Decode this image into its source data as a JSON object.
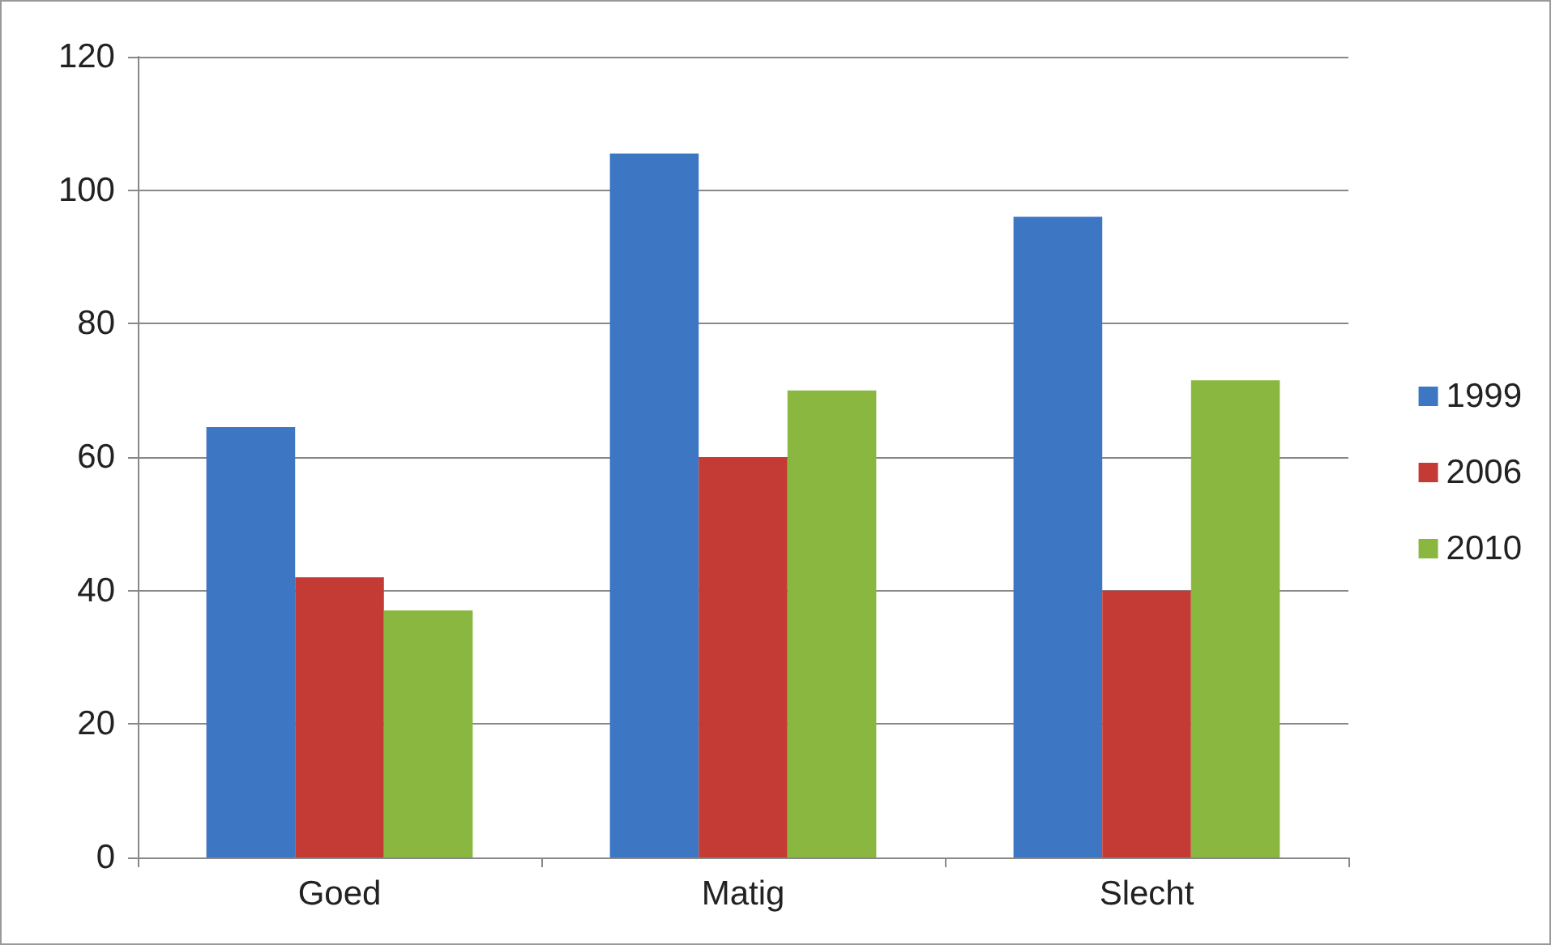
{
  "chart_data": {
    "type": "bar",
    "categories": [
      "Goed",
      "Matig",
      "Slecht"
    ],
    "series": [
      {
        "name": "1999",
        "color": "#3d77c4",
        "values": [
          64.5,
          105.5,
          96
        ]
      },
      {
        "name": "2006",
        "color": "#c43b35",
        "values": [
          42,
          60,
          40
        ]
      },
      {
        "name": "2010",
        "color": "#8ab73f",
        "values": [
          37,
          70,
          71.5
        ]
      }
    ],
    "ylim": [
      0,
      120
    ],
    "yticks": [
      0,
      20,
      40,
      60,
      80,
      100,
      120
    ],
    "grid": "y",
    "legend": "right"
  }
}
